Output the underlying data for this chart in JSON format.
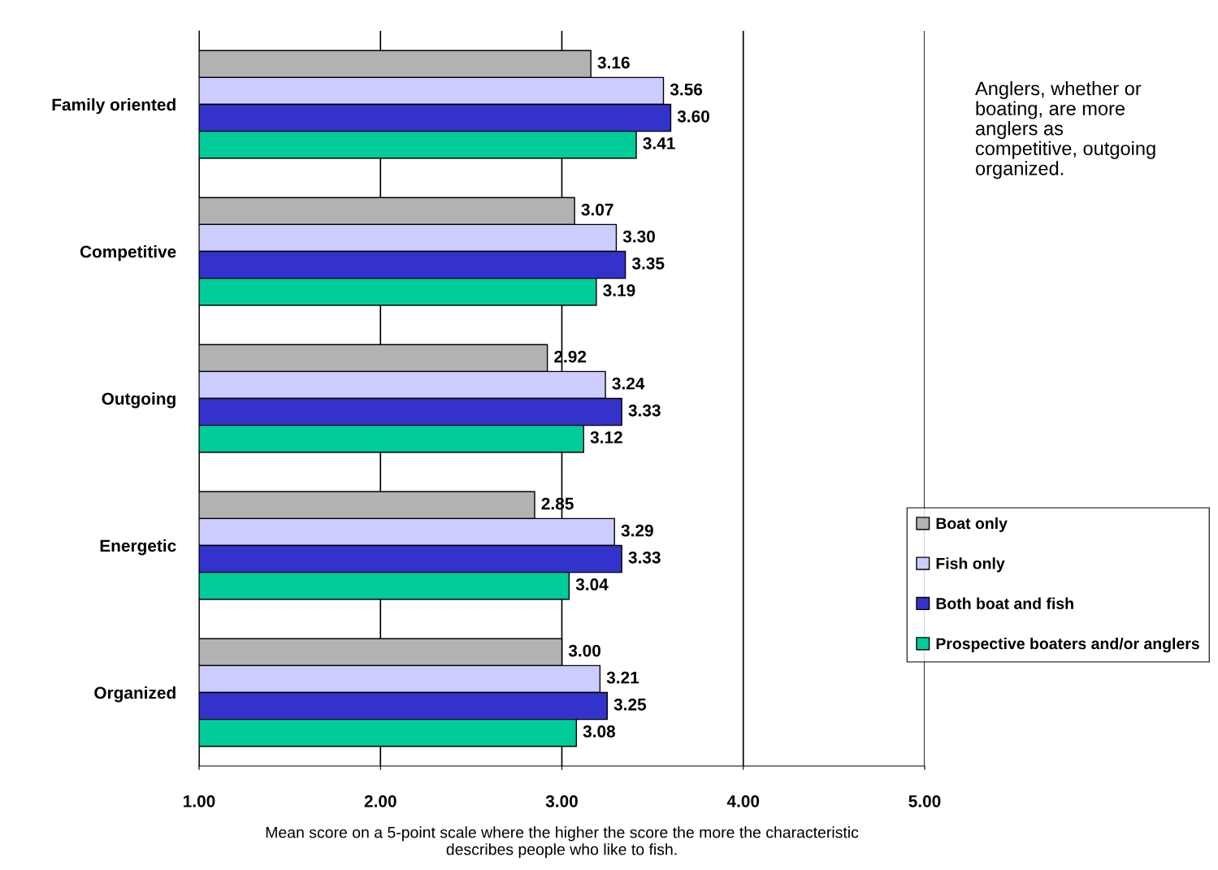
{
  "chart_data": {
    "type": "bar",
    "orientation": "horizontal",
    "categories": [
      "Family oriented",
      "Competitive",
      "Outgoing",
      "Energetic",
      "Organized"
    ],
    "series": [
      {
        "name": "Boat only",
        "color": "#b2b2b2",
        "values": [
          3.16,
          3.07,
          2.92,
          2.85,
          3.0
        ],
        "value_labels": [
          "3.16",
          "3.07",
          "2.92",
          "2.85",
          "3.00"
        ]
      },
      {
        "name": "Fish only",
        "color": "#ccccff",
        "values": [
          3.56,
          3.3,
          3.24,
          3.29,
          3.21
        ],
        "value_labels": [
          "3.56",
          "3.30",
          "3.24",
          "3.29",
          "3.21"
        ]
      },
      {
        "name": "Both boat and fish",
        "color": "#3333cc",
        "values": [
          3.6,
          3.35,
          3.33,
          3.33,
          3.25
        ],
        "value_labels": [
          "3.60",
          "3.35",
          "3.33",
          "3.33",
          "3.25"
        ]
      },
      {
        "name": "Prospective boaters and/or anglers",
        "color": "#00cc99",
        "values": [
          3.41,
          3.19,
          3.12,
          3.04,
          3.08
        ],
        "value_labels": [
          "3.41",
          "3.19",
          "3.12",
          "3.04",
          "3.08"
        ]
      }
    ],
    "xlim": [
      1,
      5
    ],
    "xticks": [
      {
        "value": 1,
        "label": "1.00"
      },
      {
        "value": 2,
        "label": "2.00"
      },
      {
        "value": 3,
        "label": "3.00"
      },
      {
        "value": 4,
        "label": "4.00"
      },
      {
        "value": 5,
        "label": "5.00"
      }
    ],
    "xlabel": "Mean score on a 5-point scale where the higher the score the more the characteristic\ndescribes people who like to fish.",
    "annotations": [
      "Anglers, whether or\nboating, are more\nanglers as\ncompetitive, outgoing\norganized."
    ],
    "grid": "x",
    "legend": "right"
  }
}
